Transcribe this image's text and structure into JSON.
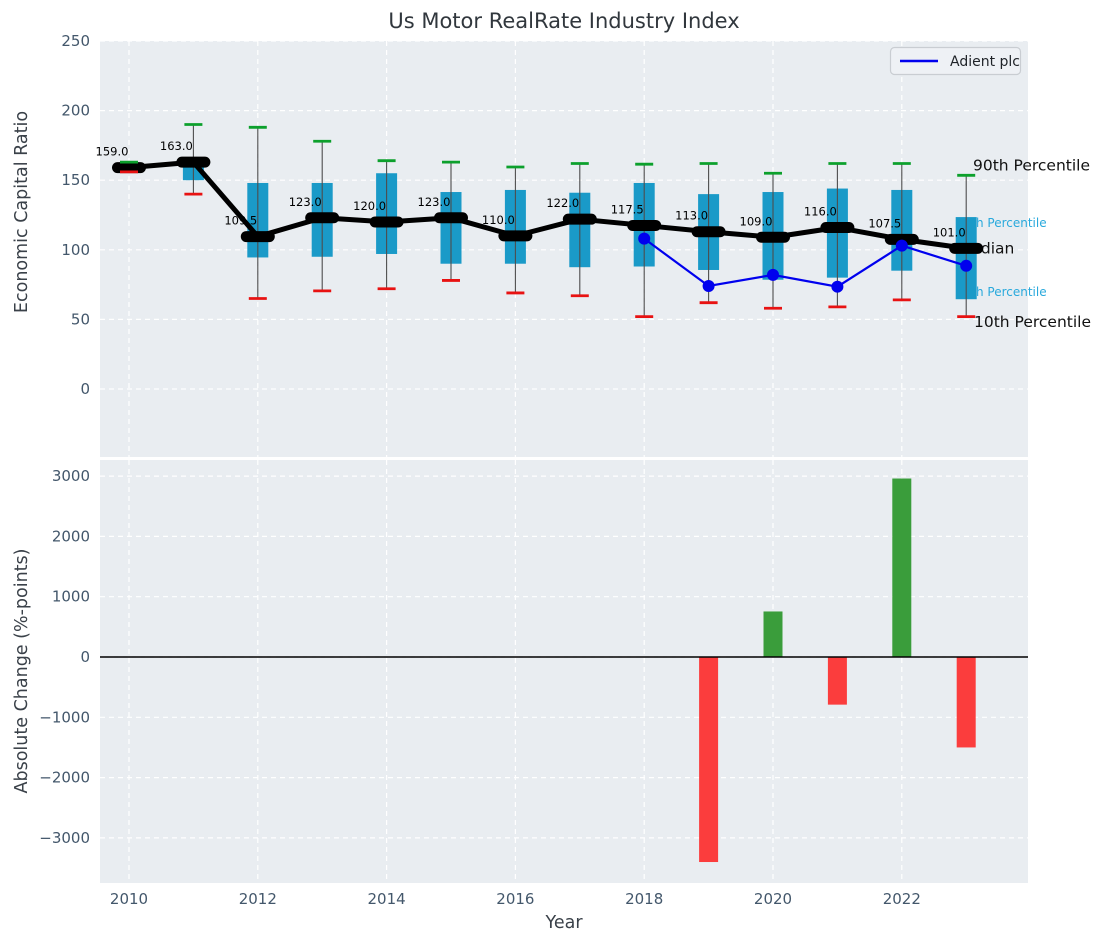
{
  "figure": {
    "title": "Us Motor RealRate Industry Index"
  },
  "colors": {
    "panel_bg": "#e9edf1",
    "grid": "#ffffff",
    "box_fill": "#1a9ac8",
    "whisker": "#4d4d4d",
    "cap_top": "#0ca02c",
    "cap_bottom": "#e81212",
    "median": "#000000",
    "series_line": "#0000ee",
    "bar_positive": "#3a9d3b",
    "bar_negative": "#fb3d3d",
    "annotation_black": "#111111",
    "annotation_cyan": "#29a9dc",
    "tick_label": "#43576b",
    "zero_line": "#000000"
  },
  "chart_data": [
    {
      "type": "boxplot+line",
      "title": "Us Motor RealRate Industry Index",
      "ylabel": "Economic Capital Ratio",
      "ylim": [
        -49,
        250
      ],
      "yticks": [
        0,
        50,
        100,
        150,
        200,
        250
      ],
      "grid": true,
      "years": [
        2010,
        2011,
        2012,
        2013,
        2014,
        2015,
        2016,
        2017,
        2018,
        2019,
        2020,
        2021,
        2022,
        2023
      ],
      "median": [
        159.0,
        163.0,
        109.5,
        123.0,
        120.0,
        123.0,
        110.0,
        122.0,
        117.5,
        113.0,
        109.0,
        116.0,
        107.5,
        101.0
      ],
      "median_labels": [
        "159.0",
        "163.0",
        "109.5",
        "123.0",
        "120.0",
        "123.0",
        "110.0",
        "122.0",
        "117.5",
        "113.0",
        "109.0",
        "116.0",
        "107.5",
        "101.0"
      ],
      "p90": [
        163.0,
        190.0,
        188.0,
        178.0,
        164.0,
        163.0,
        159.5,
        162.0,
        161.5,
        162.0,
        155.0,
        162.0,
        162.0,
        153.5
      ],
      "p75": [
        161.0,
        165.0,
        148.0,
        148.0,
        155.0,
        141.5,
        143.0,
        141.0,
        148.0,
        140.0,
        141.5,
        144.0,
        143.0,
        123.5
      ],
      "p25": [
        157.0,
        150.0,
        94.5,
        95.0,
        97.0,
        90.0,
        90.0,
        87.5,
        88.0,
        85.5,
        78.5,
        80.0,
        85.0,
        64.5
      ],
      "p10": [
        156.0,
        140.0,
        65.0,
        70.5,
        72.0,
        78.0,
        69.0,
        67.0,
        52.0,
        62.0,
        58.0,
        59.0,
        64.0,
        52.0
      ],
      "series": [
        {
          "name": "Adient plc",
          "years": [
            2018,
            2019,
            2020,
            2021,
            2022,
            2023
          ],
          "values": [
            108.0,
            74.0,
            82.0,
            73.5,
            103.0,
            88.5
          ]
        }
      ],
      "legend": {
        "label": "Adient plc",
        "position": "upper right"
      },
      "annotations": [
        {
          "text": "90th Percentile",
          "color": "black",
          "value": 160.5
        },
        {
          "text": "75th Percentile",
          "color": "cyan",
          "value": 120.0
        },
        {
          "text": "Median",
          "color": "black",
          "value": 101.0
        },
        {
          "text": "25th Percentile",
          "color": "cyan",
          "value": 70.5
        },
        {
          "text": "10th Percentile",
          "color": "black",
          "value": 48.0
        }
      ]
    },
    {
      "type": "bar",
      "ylabel": "Absolute Change (%-points)",
      "xlabel": "Year",
      "ylim": [
        -3800,
        3300
      ],
      "yticks": [
        -3000,
        -2000,
        -1000,
        0,
        1000,
        2000,
        3000
      ],
      "xticks": [
        2010,
        2012,
        2014,
        2016,
        2018,
        2020,
        2022
      ],
      "grid": true,
      "years": [
        2019,
        2020,
        2021,
        2022,
        2023
      ],
      "values": [
        -3400,
        755,
        -790,
        2960,
        -1500
      ],
      "bar_signs": [
        "negative",
        "positive",
        "negative",
        "positive",
        "negative"
      ]
    }
  ]
}
